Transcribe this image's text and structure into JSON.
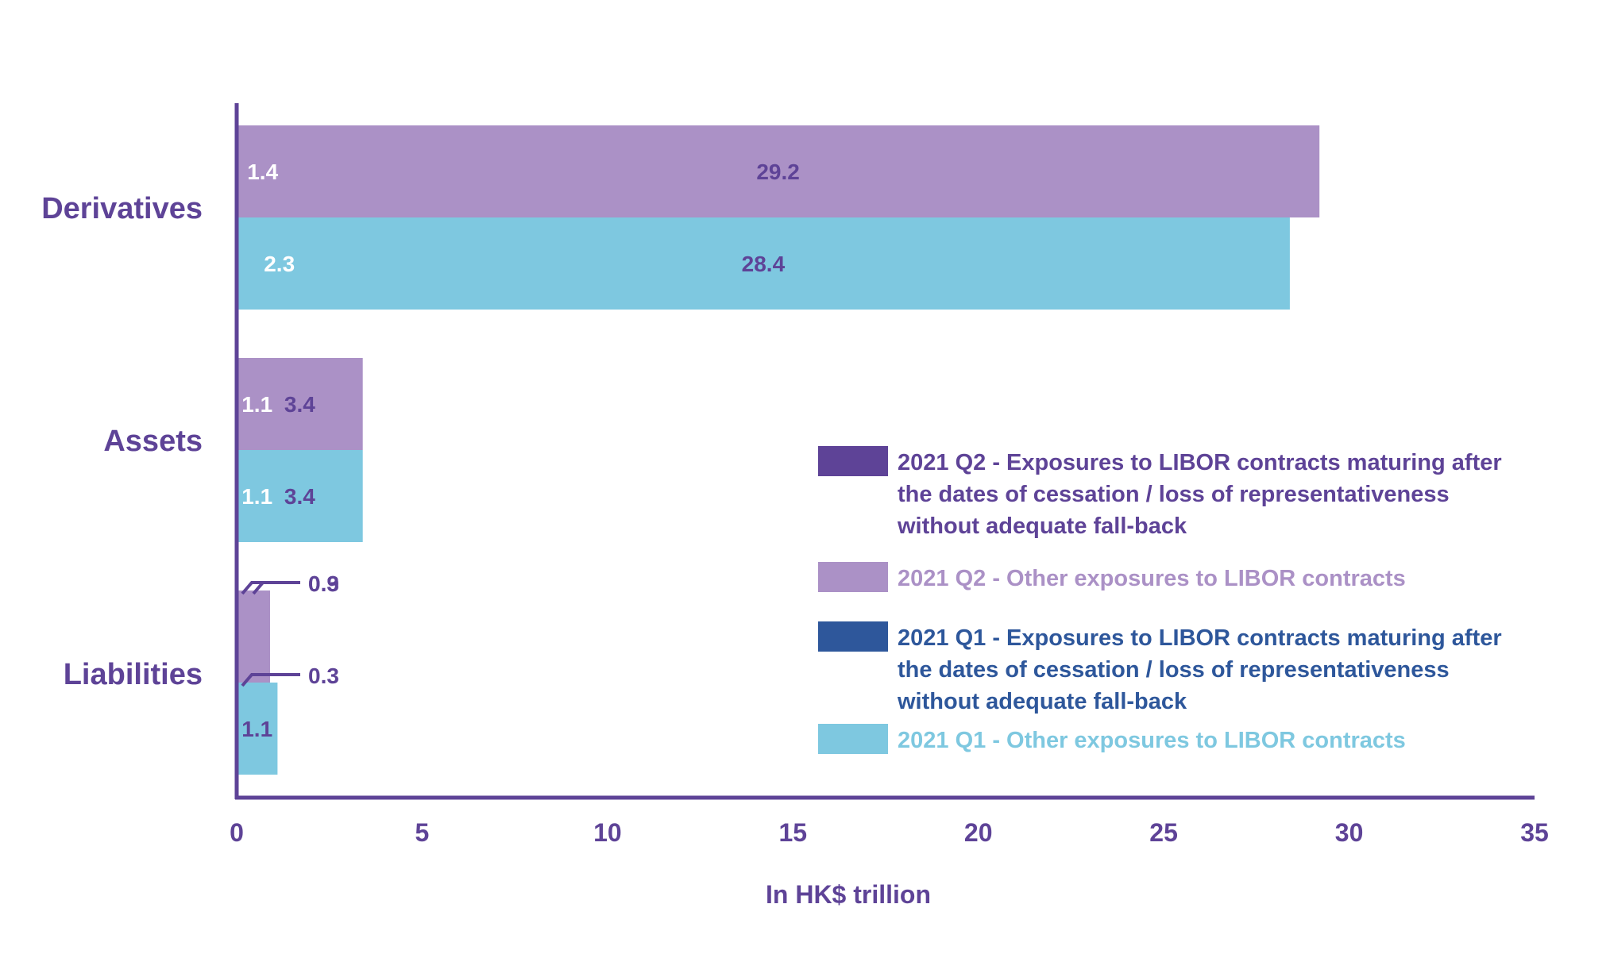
{
  "chart_data": {
    "type": "bar",
    "orientation": "horizontal",
    "stacked": true,
    "categories": [
      "Derivatives",
      "Assets",
      "Liabilities"
    ],
    "series": [
      {
        "name": "2021 Q2 - Exposures to LIBOR contracts maturing after the dates of cessation / loss of representativeness without adequate fall-back",
        "group": "2021 Q2",
        "values": [
          1.4,
          1.1,
          0.3
        ],
        "labels": [
          "1.4",
          "1.1",
          "0.3"
        ],
        "color": "#5e4397",
        "label_color": "#ffffff"
      },
      {
        "name": "2021 Q2 - Other exposures to LIBOR contracts",
        "group": "2021 Q2",
        "values": [
          29.2,
          3.4,
          0.9
        ],
        "labels": [
          "29.2",
          "3.4",
          "0.9"
        ],
        "color": "#ab91c6",
        "label_color": "#5e4397"
      },
      {
        "name": "2021 Q1 - Exposures to LIBOR contracts maturing after the dates of cessation / loss of representativeness without adequate fall-back",
        "group": "2021 Q1",
        "values": [
          2.3,
          1.1,
          0.3
        ],
        "labels": [
          "2.3",
          "1.1",
          "0.3"
        ],
        "color": "#2e579b",
        "label_color": "#ffffff"
      },
      {
        "name": "2021 Q1 - Other exposures to LIBOR contracts",
        "group": "2021 Q1",
        "values": [
          28.4,
          3.4,
          1.1
        ],
        "labels": [
          "28.4",
          "3.4",
          "1.1"
        ],
        "color": "#7ec8e0",
        "label_color": "#5e4397"
      }
    ],
    "legend": [
      {
        "lines": [
          "2021 Q2 - Exposures to LIBOR contracts maturing after",
          "the dates of cessation / loss of representativeness",
          "without adequate fall-back"
        ],
        "color": "#5e4397",
        "text_color": "#5e4397"
      },
      {
        "lines": [
          "2021 Q2 - Other exposures to LIBOR contracts"
        ],
        "color": "#ab91c6",
        "text_color": "#ab91c6"
      },
      {
        "lines": [
          "2021 Q1 - Exposures to LIBOR contracts maturing after",
          "the dates of cessation / loss of representativeness",
          "without adequate fall-back"
        ],
        "color": "#2e579b",
        "text_color": "#2e579b"
      },
      {
        "lines": [
          "2021 Q1 - Other exposures to LIBOR contracts"
        ],
        "color": "#7ec8e0",
        "text_color": "#7ec8e0"
      }
    ],
    "legend_position": "bottom-right",
    "title": "",
    "xlabel": "In HK$ trillion",
    "ylabel": "",
    "xlim": [
      0,
      35
    ],
    "xticks": [
      0,
      5,
      10,
      15,
      20,
      25,
      30,
      35
    ],
    "grid": false,
    "axis_color": "#5e4397",
    "text_color": "#5e4397"
  }
}
